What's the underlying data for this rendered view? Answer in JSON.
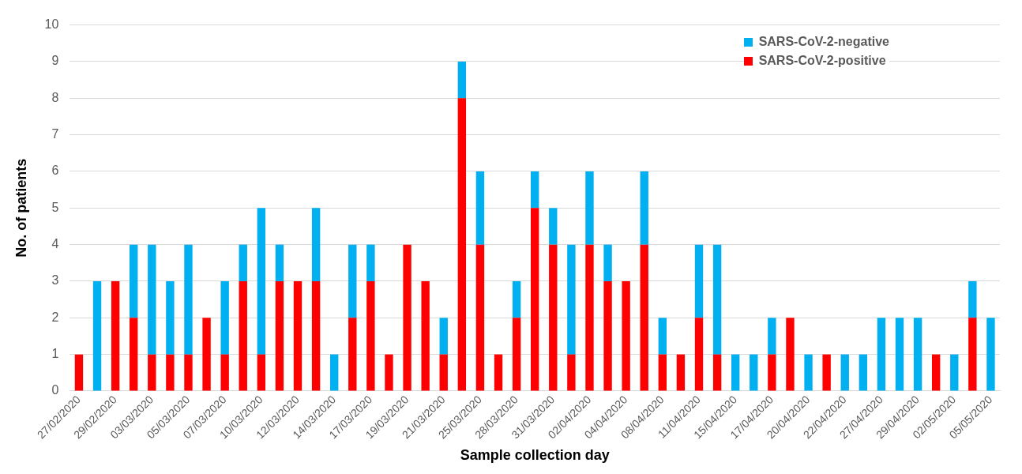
{
  "chart_data": {
    "type": "bar",
    "xlabel": "Sample collection day",
    "ylabel": "No. of patients",
    "categories": [
      "27/02/2020",
      null,
      "29/02/2020",
      null,
      "03/03/2020",
      null,
      "05/03/2020",
      null,
      "07/03/2020",
      null,
      "10/03/2020",
      null,
      "12/03/2020",
      null,
      "14/03/2020",
      null,
      "17/03/2020",
      null,
      "19/03/2020",
      null,
      "21/03/2020",
      null,
      "25/03/2020",
      null,
      "28/03/2020",
      null,
      "31/03/2020",
      null,
      "02/04/2020",
      null,
      "04/04/2020",
      null,
      "08/04/2020",
      null,
      "11/04/2020",
      null,
      "15/04/2020",
      null,
      "17/04/2020",
      null,
      "20/04/2020",
      null,
      "22/04/2020",
      null,
      "27/04/2020",
      null,
      "29/04/2020",
      null,
      "02/05/2020",
      null,
      "05/05/2020"
    ],
    "series": [
      {
        "name": "SARS-CoV-2-positive",
        "color": "#ff0000",
        "values": [
          1,
          0,
          3,
          2,
          1,
          1,
          1,
          2,
          1,
          3,
          1,
          3,
          3,
          3,
          0,
          2,
          3,
          1,
          4,
          3,
          1,
          8,
          4,
          1,
          2,
          5,
          4,
          1,
          4,
          3,
          3,
          4,
          1,
          1,
          2,
          1,
          0,
          0,
          1,
          2,
          0,
          1,
          0,
          0,
          0,
          0,
          0,
          1,
          0,
          2,
          0
        ]
      },
      {
        "name": "SARS-CoV-2-negative",
        "color": "#00b0f0",
        "values": [
          0,
          3,
          0,
          2,
          3,
          2,
          3,
          0,
          2,
          1,
          4,
          1,
          0,
          2,
          1,
          2,
          1,
          0,
          0,
          0,
          1,
          1,
          2,
          0,
          1,
          1,
          1,
          3,
          2,
          1,
          0,
          2,
          1,
          0,
          2,
          3,
          1,
          1,
          1,
          0,
          1,
          0,
          1,
          1,
          2,
          2,
          2,
          0,
          1,
          1,
          2
        ]
      }
    ],
    "stacked": true,
    "ylim": [
      0,
      10
    ],
    "yticks": [
      0,
      1,
      2,
      3,
      4,
      5,
      6,
      7,
      8,
      9,
      10
    ],
    "grid": "y",
    "legend": "top right"
  }
}
